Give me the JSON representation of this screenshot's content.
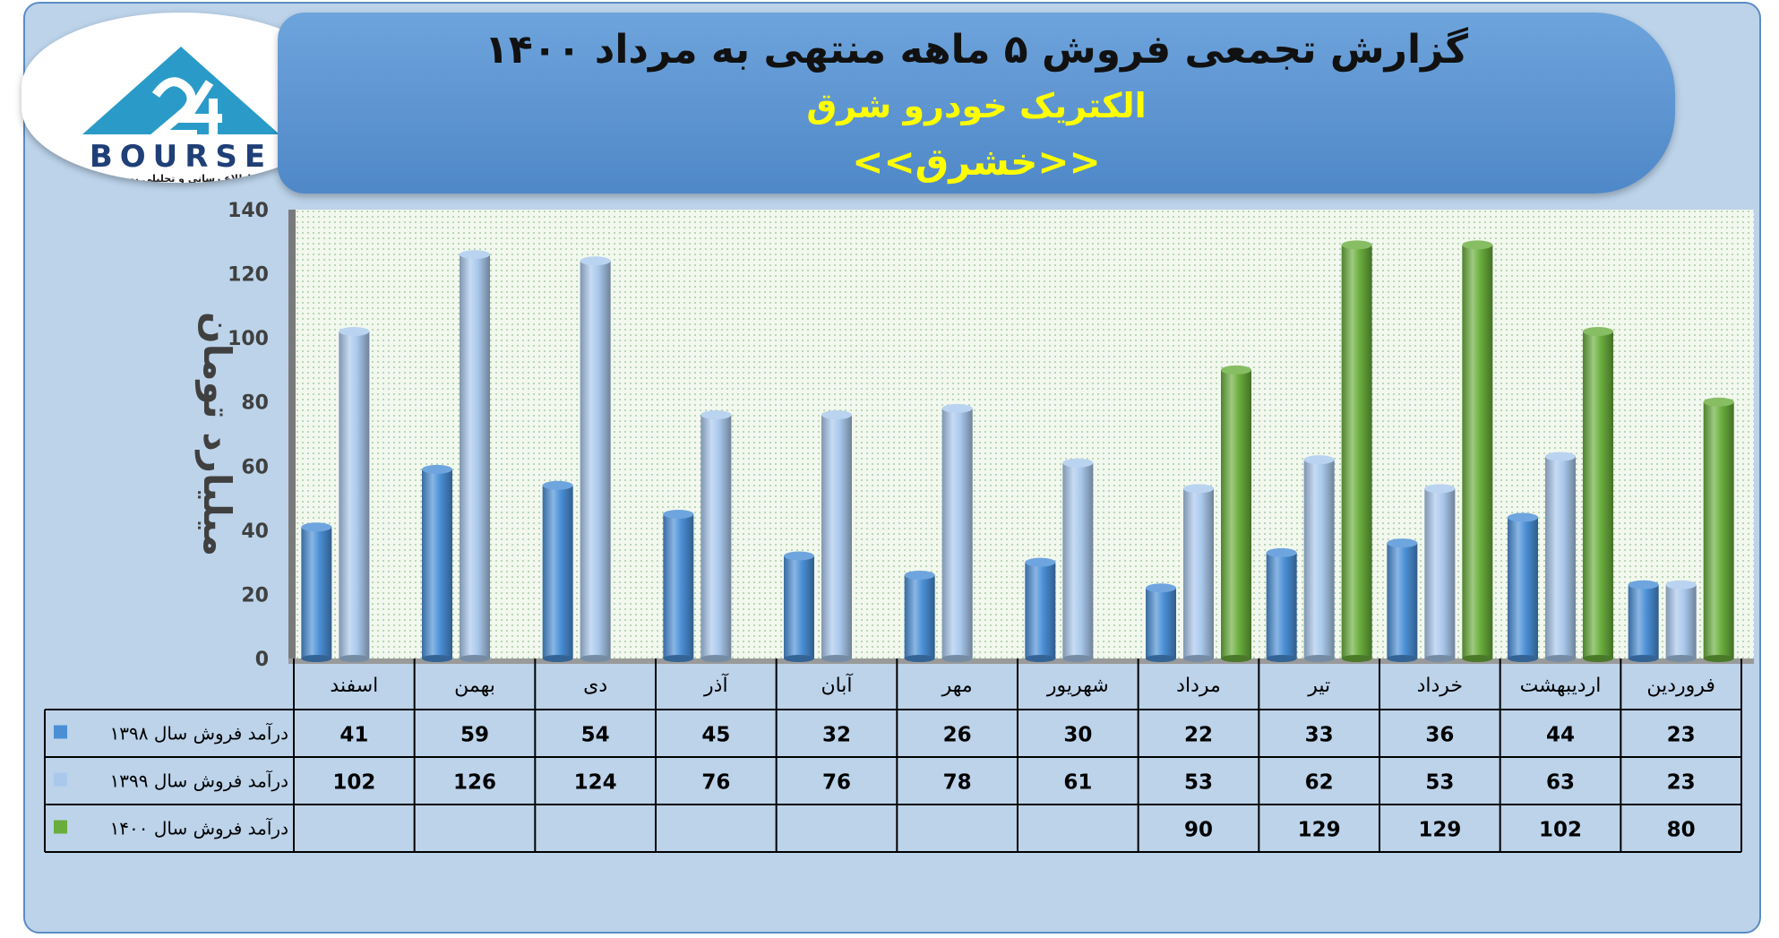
{
  "header": {
    "title": "گزارش تجمعی فروش ۵ ماهه منتهی به مرداد ۱۴۰۰",
    "company": "الکتریک خودرو شرق",
    "symbol": "<<خشرق>>"
  },
  "logo": {
    "text": "BOURSE",
    "tagline": "پایگاه اطلاع رسانی و تحلیلی بورس ایران"
  },
  "colors": {
    "s1398": "#4a8fd6",
    "s1399": "#a9c8ec",
    "s1400": "#69ad3c"
  },
  "chart_data": {
    "type": "bar",
    "ylabel": "میلیارد تومان",
    "ylim": [
      0,
      140
    ],
    "yticks": [
      0,
      20,
      40,
      60,
      80,
      100,
      120,
      140
    ],
    "categories": [
      "فروردین",
      "اردیبهشت",
      "خرداد",
      "تیر",
      "مرداد",
      "شهریور",
      "مهر",
      "آبان",
      "آذر",
      "دی",
      "بهمن",
      "اسفند"
    ],
    "series": [
      {
        "name": "درآمد فروش سال ۱۳۹۸",
        "values": [
          23,
          44,
          36,
          33,
          22,
          30,
          26,
          32,
          45,
          54,
          59,
          41
        ]
      },
      {
        "name": "درآمد فروش سال ۱۳۹۹",
        "values": [
          23,
          63,
          53,
          62,
          53,
          61,
          78,
          76,
          76,
          124,
          126,
          102
        ]
      },
      {
        "name": "درآمد فروش سال ۱۴۰۰",
        "values": [
          80,
          102,
          129,
          129,
          90,
          null,
          null,
          null,
          null,
          null,
          null,
          null
        ]
      }
    ],
    "grid": false,
    "legend": "data-table"
  }
}
